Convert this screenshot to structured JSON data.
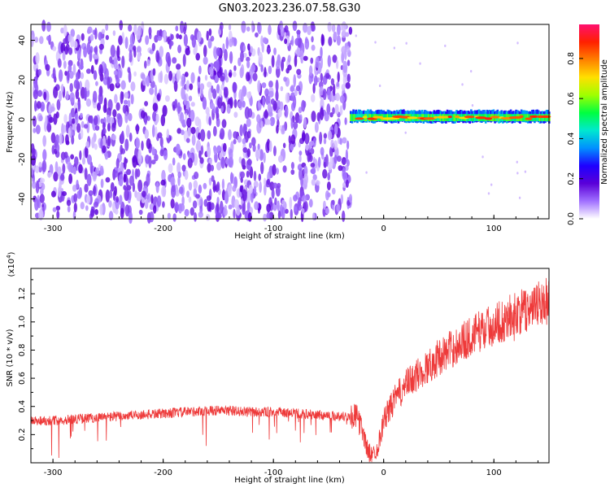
{
  "figure": {
    "title": "GN03.2023.236.07.58.G30"
  },
  "chart_data": [
    {
      "type": "heatmap",
      "xlabel": "Height of straight line (km)",
      "ylabel": "Frequency (Hz)",
      "xlim": [
        -320,
        150
      ],
      "ylim": [
        -50,
        48
      ],
      "xticks": [
        -300,
        -200,
        -100,
        0,
        100
      ],
      "yticks": [
        -40,
        -20,
        0,
        20,
        40
      ],
      "colorbar": {
        "label": "Normalized spectral amplitude",
        "range": [
          0,
          0.97
        ],
        "ticks": [
          "0.0",
          "0.2",
          "0.4",
          "0.6",
          "0.8"
        ],
        "tick_values": [
          0,
          0.2,
          0.4,
          0.6,
          0.8
        ],
        "colors": [
          "#ffffff",
          "#a070ff",
          "#5a00d8",
          "#1e00ff",
          "#0090ff",
          "#00e8d0",
          "#00ff40",
          "#a0ff00",
          "#ffe000",
          "#ff8000",
          "#ff2000",
          "#ff1070"
        ]
      },
      "noise_region": {
        "x_range": [
          -320,
          -30
        ],
        "freq_range": [
          -50,
          48
        ],
        "typical_amplitude": 0.1
      },
      "signal_band": {
        "x_range": [
          -30,
          150
        ],
        "center_freq": 1,
        "half_width": 3,
        "core_amplitude": 0.85,
        "edge_amplitude": 0.45
      }
    },
    {
      "type": "line",
      "xlabel": "Height of straight line (km)",
      "ylabel": "SNR (10 * v/v)",
      "yscale_label": "(x10",
      "yscale_exp": "4",
      "yscale_close": ")",
      "xlim": [
        -320,
        150
      ],
      "ylim": [
        0,
        1.38
      ],
      "xticks": [
        -300,
        -200,
        -100,
        0,
        100
      ],
      "yticks": [
        "0.2",
        "0.4",
        "0.6",
        "0.8",
        "1.0",
        "1.2"
      ],
      "ytick_values": [
        0.2,
        0.4,
        0.6,
        0.8,
        1.0,
        1.2
      ],
      "color": "#ee3a3a",
      "series": {
        "x": [
          -320,
          -300,
          -280,
          -260,
          -240,
          -220,
          -200,
          -180,
          -160,
          -140,
          -120,
          -100,
          -80,
          -60,
          -40,
          -25,
          -20,
          -15,
          -10,
          -5,
          0,
          10,
          20,
          30,
          40,
          50,
          60,
          70,
          80,
          90,
          100,
          110,
          120,
          130,
          140,
          150
        ],
        "y": [
          0.3,
          0.3,
          0.31,
          0.32,
          0.33,
          0.34,
          0.35,
          0.36,
          0.37,
          0.37,
          0.36,
          0.36,
          0.35,
          0.34,
          0.33,
          0.33,
          0.25,
          0.1,
          0.05,
          0.12,
          0.3,
          0.45,
          0.55,
          0.62,
          0.68,
          0.75,
          0.8,
          0.85,
          0.9,
          0.95,
          0.98,
          1.02,
          1.06,
          1.08,
          1.12,
          1.15
        ]
      },
      "noise_amplitude": 0.06
    }
  ]
}
